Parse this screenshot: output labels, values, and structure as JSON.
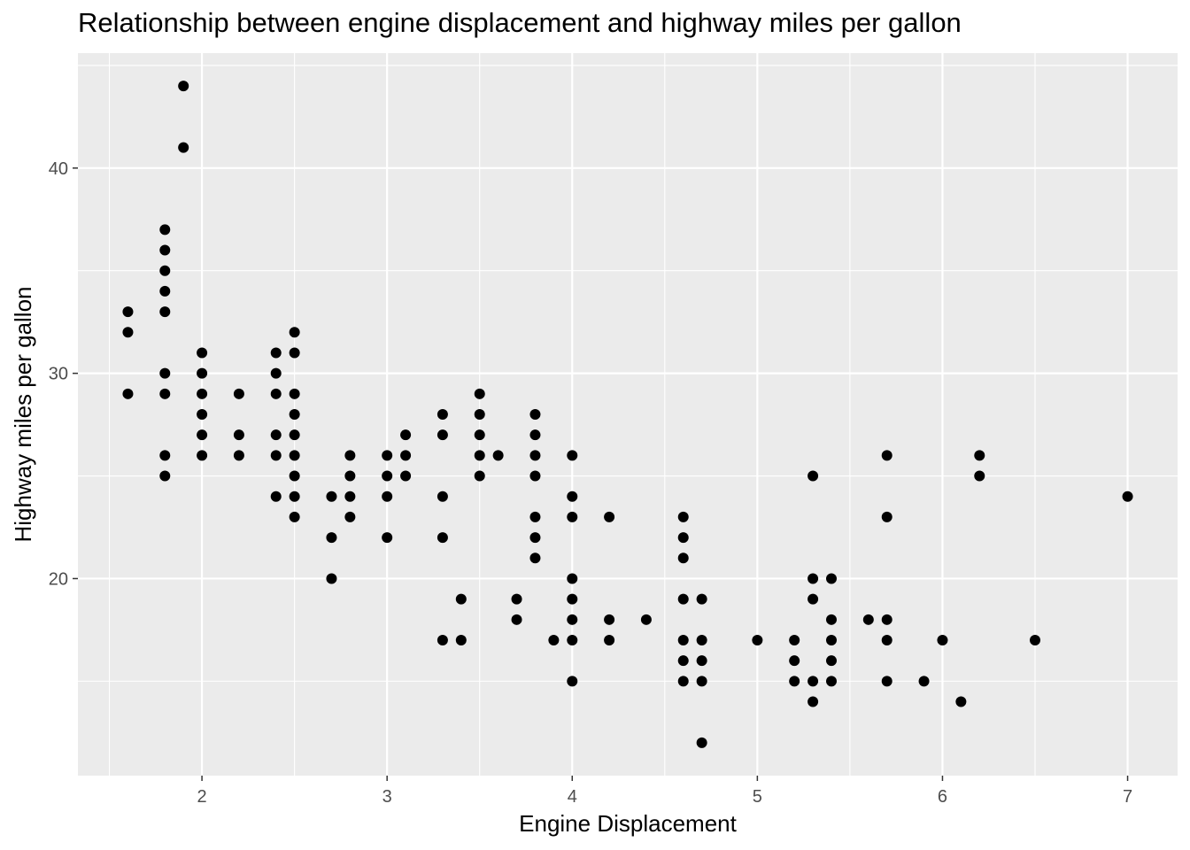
{
  "chart_data": {
    "type": "scatter",
    "title": "Relationship between engine displacement and highway miles per gallon",
    "xlabel": "Engine Displacement",
    "ylabel": "Highway miles per gallon",
    "xlim": [
      1.33,
      7.27
    ],
    "ylim": [
      10.4,
      45.6
    ],
    "xticks": [
      2,
      3,
      4,
      5,
      6,
      7
    ],
    "yticks": [
      20,
      30,
      40
    ],
    "grid": true,
    "panel_background": "#ebebeb",
    "grid_color": "#ffffff",
    "point_color": "#000000",
    "points": [
      [
        1.6,
        33
      ],
      [
        1.6,
        32
      ],
      [
        1.6,
        29
      ],
      [
        1.8,
        37
      ],
      [
        1.8,
        36
      ],
      [
        1.8,
        35
      ],
      [
        1.8,
        34
      ],
      [
        1.8,
        33
      ],
      [
        1.8,
        30
      ],
      [
        1.8,
        29
      ],
      [
        1.8,
        26
      ],
      [
        1.8,
        25
      ],
      [
        1.9,
        44
      ],
      [
        1.9,
        41
      ],
      [
        2.0,
        31
      ],
      [
        2.0,
        30
      ],
      [
        2.0,
        29
      ],
      [
        2.0,
        28
      ],
      [
        2.0,
        27
      ],
      [
        2.0,
        26
      ],
      [
        2.2,
        29
      ],
      [
        2.2,
        27
      ],
      [
        2.2,
        26
      ],
      [
        2.4,
        31
      ],
      [
        2.4,
        30
      ],
      [
        2.4,
        29
      ],
      [
        2.4,
        27
      ],
      [
        2.4,
        26
      ],
      [
        2.4,
        24
      ],
      [
        2.5,
        32
      ],
      [
        2.5,
        31
      ],
      [
        2.5,
        29
      ],
      [
        2.5,
        28
      ],
      [
        2.5,
        27
      ],
      [
        2.5,
        26
      ],
      [
        2.5,
        25
      ],
      [
        2.5,
        24
      ],
      [
        2.5,
        23
      ],
      [
        2.7,
        24
      ],
      [
        2.7,
        22
      ],
      [
        2.7,
        20
      ],
      [
        2.8,
        26
      ],
      [
        2.8,
        25
      ],
      [
        2.8,
        24
      ],
      [
        2.8,
        23
      ],
      [
        3.0,
        26
      ],
      [
        3.0,
        25
      ],
      [
        3.0,
        24
      ],
      [
        3.0,
        22
      ],
      [
        3.1,
        27
      ],
      [
        3.1,
        26
      ],
      [
        3.1,
        25
      ],
      [
        3.3,
        28
      ],
      [
        3.3,
        27
      ],
      [
        3.3,
        24
      ],
      [
        3.3,
        22
      ],
      [
        3.3,
        17
      ],
      [
        3.4,
        19
      ],
      [
        3.4,
        17
      ],
      [
        3.5,
        29
      ],
      [
        3.5,
        28
      ],
      [
        3.5,
        27
      ],
      [
        3.5,
        26
      ],
      [
        3.5,
        25
      ],
      [
        3.6,
        26
      ],
      [
        3.7,
        19
      ],
      [
        3.7,
        18
      ],
      [
        3.8,
        28
      ],
      [
        3.8,
        27
      ],
      [
        3.8,
        26
      ],
      [
        3.8,
        25
      ],
      [
        3.8,
        23
      ],
      [
        3.8,
        22
      ],
      [
        3.8,
        21
      ],
      [
        3.9,
        17
      ],
      [
        4.0,
        26
      ],
      [
        4.0,
        24
      ],
      [
        4.0,
        23
      ],
      [
        4.0,
        20
      ],
      [
        4.0,
        19
      ],
      [
        4.0,
        18
      ],
      [
        4.0,
        17
      ],
      [
        4.0,
        15
      ],
      [
        4.2,
        23
      ],
      [
        4.2,
        18
      ],
      [
        4.2,
        17
      ],
      [
        4.4,
        18
      ],
      [
        4.6,
        23
      ],
      [
        4.6,
        22
      ],
      [
        4.6,
        21
      ],
      [
        4.6,
        19
      ],
      [
        4.6,
        17
      ],
      [
        4.6,
        16
      ],
      [
        4.6,
        15
      ],
      [
        4.7,
        19
      ],
      [
        4.7,
        17
      ],
      [
        4.7,
        16
      ],
      [
        4.7,
        15
      ],
      [
        4.7,
        12
      ],
      [
        5.0,
        17
      ],
      [
        5.2,
        17
      ],
      [
        5.2,
        16
      ],
      [
        5.2,
        15
      ],
      [
        5.3,
        25
      ],
      [
        5.3,
        20
      ],
      [
        5.3,
        19
      ],
      [
        5.3,
        15
      ],
      [
        5.3,
        14
      ],
      [
        5.4,
        20
      ],
      [
        5.4,
        18
      ],
      [
        5.4,
        17
      ],
      [
        5.4,
        16
      ],
      [
        5.4,
        15
      ],
      [
        5.6,
        18
      ],
      [
        5.7,
        26
      ],
      [
        5.7,
        23
      ],
      [
        5.7,
        18
      ],
      [
        5.7,
        17
      ],
      [
        5.7,
        15
      ],
      [
        5.9,
        15
      ],
      [
        6.0,
        17
      ],
      [
        6.1,
        14
      ],
      [
        6.2,
        26
      ],
      [
        6.2,
        25
      ],
      [
        6.5,
        17
      ],
      [
        7.0,
        24
      ]
    ]
  }
}
